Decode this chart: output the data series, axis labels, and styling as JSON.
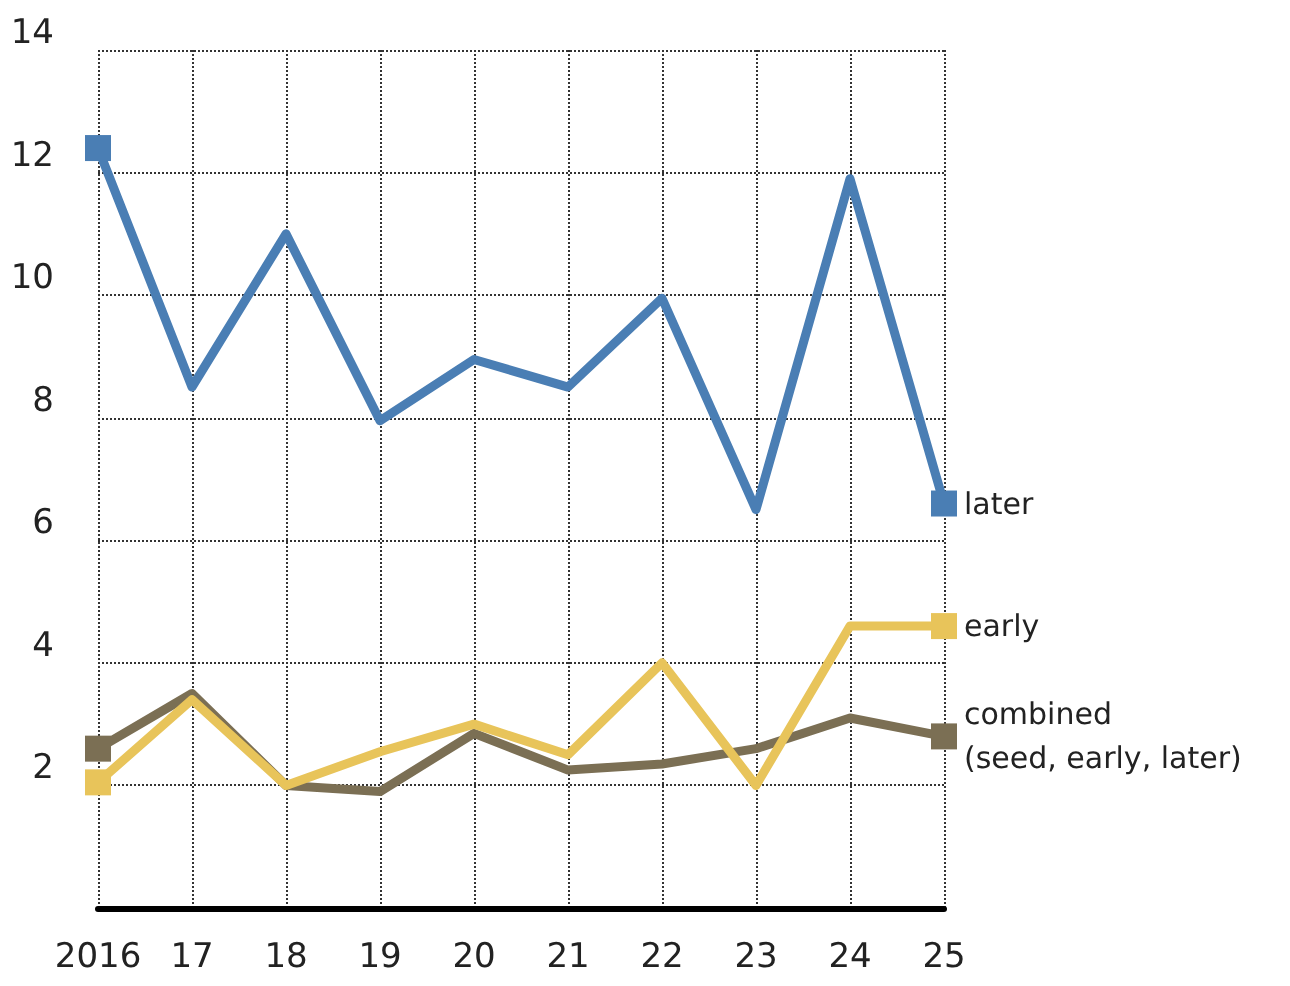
{
  "chart_data": {
    "type": "line",
    "categories": [
      "2016",
      "17",
      "18",
      "19",
      "20",
      "21",
      "22",
      "23",
      "24",
      "25"
    ],
    "series": [
      {
        "name": "later",
        "color": "#4a7eb4",
        "values": [
          12.4,
          8.5,
          11.0,
          7.95,
          8.95,
          8.5,
          9.95,
          6.5,
          11.9,
          6.6
        ]
      },
      {
        "name": "early",
        "color": "#e8c45a",
        "values": [
          2.05,
          3.4,
          2.0,
          2.55,
          3.0,
          2.5,
          4.0,
          2.0,
          4.6,
          4.6
        ]
      },
      {
        "name": "combined (seed, early, later)",
        "color": "#7b6f54",
        "values": [
          2.6,
          3.5,
          2.0,
          1.9,
          2.85,
          2.25,
          2.35,
          2.6,
          3.1,
          2.8
        ]
      }
    ],
    "ylim": [
      0,
      14
    ],
    "yticks": [
      2,
      4,
      6,
      8,
      10,
      12,
      14
    ],
    "grid": true,
    "legend": "right",
    "line_style": "solid"
  }
}
